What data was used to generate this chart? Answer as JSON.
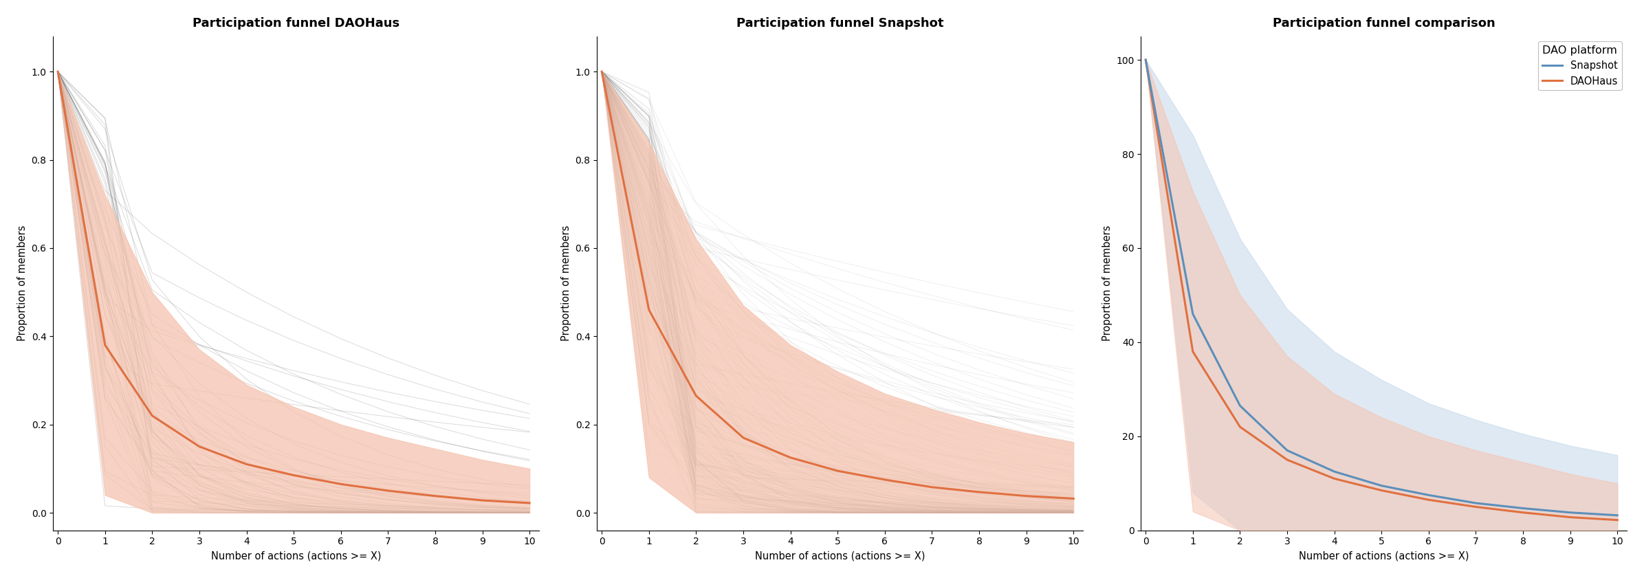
{
  "title1": "Participation funnel DAOHaus",
  "title2": "Participation funnel Snapshot",
  "title3": "Participation funnel comparison",
  "xlabel": "Number of actions (actions >= X)",
  "ylabel12": "Proportion of members",
  "ylabel3": "Proportion of members",
  "x": [
    0,
    1,
    2,
    3,
    4,
    5,
    6,
    7,
    8,
    9,
    10
  ],
  "daohaus_mean": [
    1.0,
    0.38,
    0.22,
    0.15,
    0.11,
    0.085,
    0.065,
    0.05,
    0.038,
    0.028,
    0.022
  ],
  "daohaus_se_upper": [
    1.0,
    0.72,
    0.5,
    0.37,
    0.29,
    0.24,
    0.2,
    0.17,
    0.145,
    0.12,
    0.1
  ],
  "daohaus_se_lower": [
    1.0,
    0.04,
    0.0,
    0.0,
    0.0,
    0.0,
    0.0,
    0.0,
    0.0,
    0.0,
    0.0
  ],
  "snapshot_mean": [
    1.0,
    0.46,
    0.265,
    0.17,
    0.125,
    0.095,
    0.075,
    0.058,
    0.047,
    0.038,
    0.032
  ],
  "snapshot_se_upper": [
    1.0,
    0.84,
    0.62,
    0.47,
    0.38,
    0.32,
    0.27,
    0.235,
    0.205,
    0.18,
    0.16
  ],
  "snapshot_se_lower": [
    1.0,
    0.08,
    0.0,
    0.0,
    0.0,
    0.0,
    0.0,
    0.0,
    0.0,
    0.0,
    0.0
  ],
  "comp_snapshot_mean_pct": [
    100,
    46,
    26.5,
    17,
    12.5,
    9.5,
    7.5,
    5.8,
    4.7,
    3.8,
    3.2
  ],
  "comp_snapshot_upper_pct": [
    100,
    84,
    62,
    47,
    38,
    32,
    27,
    23.5,
    20.5,
    18,
    16
  ],
  "comp_snapshot_lower_pct": [
    100,
    8,
    0,
    0,
    0,
    0,
    0,
    0,
    0,
    0,
    0
  ],
  "comp_daohaus_mean_pct": [
    100,
    38,
    22,
    15,
    11,
    8.5,
    6.5,
    5,
    3.8,
    2.8,
    2.2
  ],
  "comp_daohaus_upper_pct": [
    100,
    72,
    50,
    37,
    29,
    24,
    20,
    17,
    14.5,
    12,
    10
  ],
  "comp_daohaus_lower_pct": [
    100,
    4,
    0,
    0,
    0,
    0,
    0,
    0,
    0,
    0,
    0
  ],
  "orange_color": "#E07040",
  "blue_color": "#5B8FBB",
  "gray_line_color": "#555555",
  "orange_fill": "#F5C4B0",
  "blue_fill": "#C5D8EA",
  "background_color": "#ffffff",
  "n_daohaus_daos": 65,
  "n_snapshot_daos": 220
}
